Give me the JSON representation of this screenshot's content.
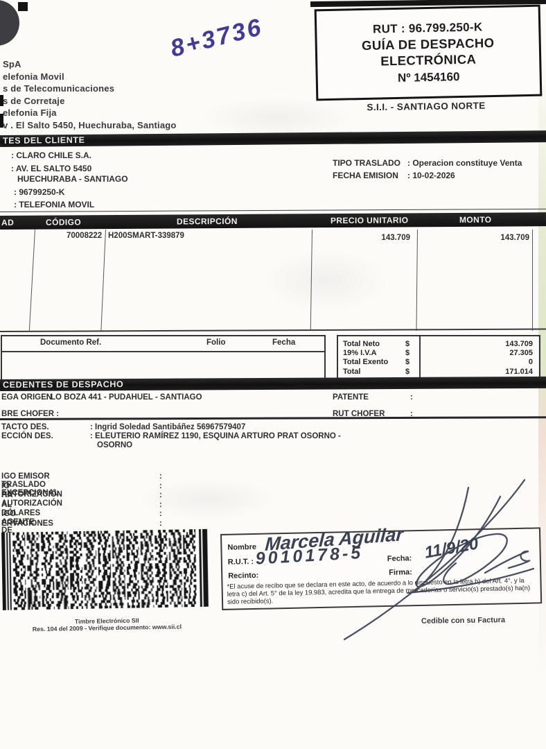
{
  "colors": {
    "paper": "#fcfbf8",
    "bar_black": "#1b1b1b",
    "handwriting_ink_blue": "#423a97",
    "handwriting_ink_dark": "#3a4152"
  },
  "company": {
    "lines": [
      "SpA",
      "elefonia Movil",
      "s de Telecomunicaciones",
      "s de Corretaje",
      "elefonia Fija",
      "v . El Salto 5450, Huechuraba, Santiago"
    ]
  },
  "handwritten_note": "8+3736",
  "rut_box": {
    "rut": "RUT : 96.799.250-K",
    "title_line1": "GUÍA DE DESPACHO",
    "title_line2": "ELECTRÓNICA",
    "folio": "Nº 1454160"
  },
  "sii_office": "S.I.I. - SANTIAGO NORTE",
  "client_section": {
    "bar_title": "TES DEL CLIENTE",
    "rows": [
      ": CLARO CHILE S.A.",
      ": AV. EL SALTO 5450",
      "HUECHURABA - SANTIAGO",
      ": 96799250-K",
      ": TELEFONIA MOVIL"
    ],
    "tipo_traslado_label": "TIPO TRASLADO",
    "tipo_traslado_value": ": Operacion constituye Venta",
    "fecha_emision_label": "FECHA EMISION",
    "fecha_emision_value": ": 10-02-2026"
  },
  "items_table": {
    "headers": {
      "cantidad": "AD",
      "codigo": "CÓDIGO",
      "descripcion": "DESCRIPCIÓN",
      "precio_unitario": "PRECIO UNITARIO",
      "monto": "MONTO"
    },
    "row": {
      "codigo": "70008222",
      "descripcion": "H200SMART-339879",
      "precio_unitario": "143.709",
      "monto": "143.709"
    }
  },
  "ref_box": {
    "headers": [
      "Documento Ref.",
      "Folio",
      "Fecha"
    ]
  },
  "totals": {
    "rows": [
      {
        "label": "Total Neto",
        "currency": "$",
        "value": "143.709"
      },
      {
        "label": "19% I.V.A",
        "currency": "$",
        "value": "27.305"
      },
      {
        "label": "Total Exento",
        "currency": "$",
        "value": "0"
      },
      {
        "label": "Total",
        "currency": "$",
        "value": "171.014"
      }
    ]
  },
  "despacho_section": {
    "bar_title": "CEDENTES DE DESPACHO",
    "entrega_origen_label": "EGA ORIGEN",
    "entrega_origen_value": ": LO BOZA 441 - PUDAHUEL - SANTIAGO",
    "patente_label": "PATENTE",
    "patente_value": ":",
    "chofer_label": "BRE CHOFER :",
    "rut_chofer_label": "RUT CHOFER",
    "rut_chofer_value": ":"
  },
  "destination": {
    "contacto_label": "TACTO DES.",
    "contacto_value": ": Ingrid Soledad Santibáñez 56967579407",
    "direccion_label": "ECCIÓN DES.",
    "direccion_value_line1": ": ELEUTERIO RAMÍREZ 1190, ESQUINA ARTURO PRAT OSORNO -",
    "direccion_value_line2": "OSORNO"
  },
  "extra_fields": [
    {
      "label": "IGO EMISOR TRASLADO EXCEPCIONAL",
      "value": ":"
    },
    {
      "label": "IO AUTORIZACIÓN",
      "value": ":"
    },
    {
      "label": "HA AUTORIZACIÓN",
      "value": ":"
    },
    {
      "label": "AL DÓLARES",
      "value": ":"
    },
    {
      "label": "IGO AGENTE DE ADUANA",
      "value": ":"
    },
    {
      "label": "ERVACIONES",
      "value": ":"
    }
  ],
  "stamp": {
    "caption_line1": "Timbre Electrónico SII",
    "caption_line2": "Res. 104 del 2009 - Verifique documento: www.sii.cl"
  },
  "receipt_box": {
    "nombre_label": "Nombre",
    "rut_label": "R.U.T. :",
    "recinto_label": "Recinto:",
    "fecha_label": "Fecha:",
    "firma_label": "Firma:",
    "handwritten_nombre": "Marcela Aguilar",
    "handwritten_rut": "9010178-5",
    "handwritten_fecha": "11/9/20",
    "legal_text": "*El acuse de recibo que se declara en este acto, de acuerdo a lo dispuesto en la letra b) del Art. 4°, y la letra c) del Art. 5° de la ley 19.983, acredita que la entrega de mercaderías o servicio(s) prestado(s) ha(n) sido recibido(s)."
  },
  "footer": {
    "cedible": "Cedible con su Factura"
  }
}
